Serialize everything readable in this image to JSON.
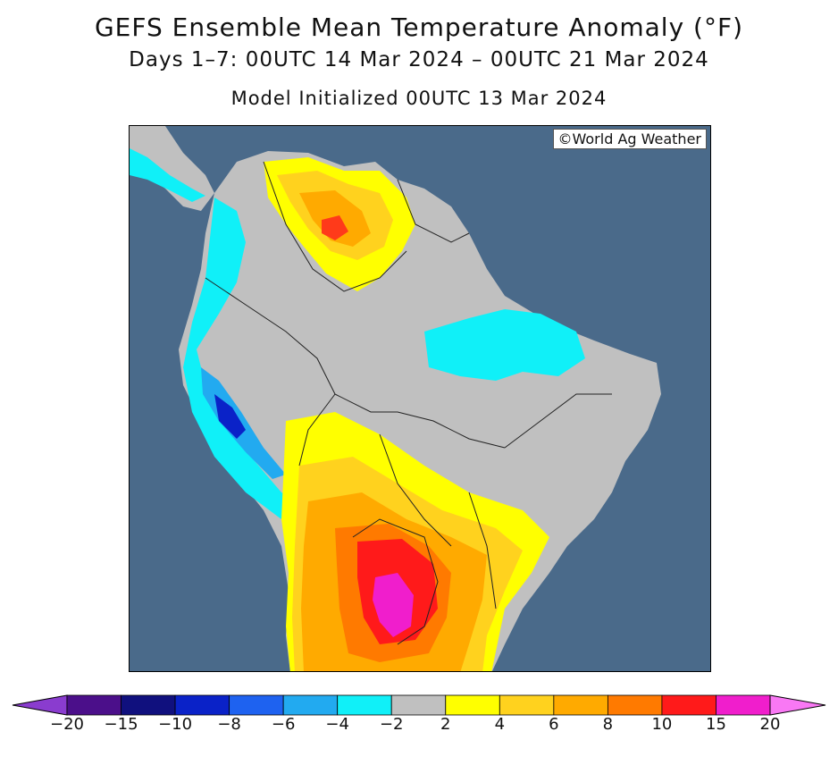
{
  "header": {
    "title": "GEFS Ensemble Mean Temperature Anomaly (°F)",
    "period": "Days 1–7: 00UTC 14 Mar 2024 – 00UTC 21 Mar 2024",
    "init": "Model Initialized 00UTC 13 Mar 2024"
  },
  "map": {
    "credit": "©World Ag Weather",
    "region": "South America",
    "ocean_color": "#4a6a8a",
    "land_neutral_color": "#c0c0c0"
  },
  "legend": {
    "tick_labels": [
      "−20",
      "−15",
      "−10",
      "−8",
      "−6",
      "−4",
      "−2",
      "2",
      "4",
      "6",
      "8",
      "10",
      "15",
      "20"
    ],
    "colors": [
      "#4b0f8a",
      "#10107e",
      "#0a22c8",
      "#1e62f0",
      "#22aaf0",
      "#10f0f8",
      "#c0c0c0",
      "#ffff00",
      "#ffd21e",
      "#ffaa00",
      "#ff7a00",
      "#ff1a1a",
      "#f01ecc"
    ],
    "low_end_color": "#8a3ccf",
    "high_end_color": "#f978f4"
  }
}
